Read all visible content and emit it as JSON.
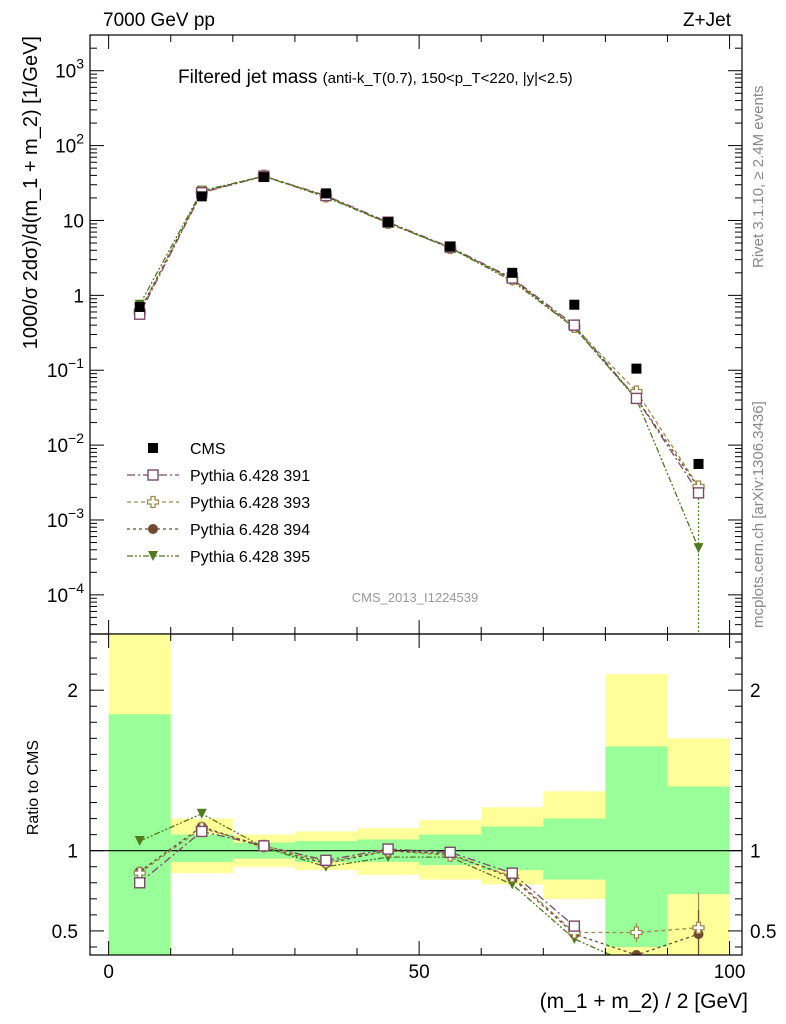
{
  "chart_data": {
    "type": "scatter",
    "header_left": "7000 GeV pp",
    "header_right": "Z+Jet",
    "title": "Filtered jet mass",
    "title_cuts": "(anti-k_T(0.7), 150<p_T<220, |y|<2.5)",
    "analysis_id": "CMS_2013_I1224539",
    "side_label_top": "Rivet 3.1.10, ≥ 2.4M events",
    "side_label_bottom": "mcplots.cern.ch [arXiv:1306.3436]",
    "xlabel": "(m_1 + m_2) / 2 [GeV]",
    "ylabel": "1000/σ 2dσ)/d(m_1 + m_2) [1/GeV]",
    "ratio_ylabel": "Ratio to CMS",
    "xlim": [
      -3,
      102
    ],
    "ylim": [
      3e-05,
      3000
    ],
    "yscale": "log",
    "ratio_ylim": [
      0.35,
      2.35
    ],
    "x_ticks": [
      0,
      50,
      100
    ],
    "x_tick_labels": [
      "0",
      "50",
      "100"
    ],
    "ratio_ticks": [
      0.5,
      1,
      2
    ],
    "ratio_tick_labels": [
      "0.5",
      "1",
      "2"
    ],
    "y_tick_labels": [
      {
        "v": 1000,
        "base": "10",
        "exp": "3"
      },
      {
        "v": 100,
        "base": "10",
        "exp": "2"
      },
      {
        "v": 10,
        "base": "10",
        "exp": ""
      },
      {
        "v": 1,
        "base": "1",
        "exp": ""
      },
      {
        "v": 0.1,
        "base": "10",
        "exp": "−1"
      },
      {
        "v": 0.01,
        "base": "10",
        "exp": "−2"
      },
      {
        "v": 0.001,
        "base": "10",
        "exp": "−3"
      },
      {
        "v": 0.0001,
        "base": "10",
        "exp": "−4"
      }
    ],
    "x_bins": [
      5,
      15,
      25,
      35,
      45,
      55,
      65,
      75,
      85,
      95
    ],
    "bin_edges": [
      0,
      10,
      20,
      30,
      40,
      50,
      60,
      70,
      80,
      90,
      100
    ],
    "band_inner": [
      [
        0.0,
        1.85
      ],
      [
        0.93,
        1.1
      ],
      [
        0.95,
        1.05
      ],
      [
        0.93,
        1.06
      ],
      [
        0.93,
        1.07
      ],
      [
        0.91,
        1.1
      ],
      [
        0.88,
        1.15
      ],
      [
        0.82,
        1.2
      ],
      [
        0.4,
        1.65
      ],
      [
        0.73,
        1.4
      ]
    ],
    "band_outer": [
      [
        0.0,
        2.35
      ],
      [
        0.86,
        1.2
      ],
      [
        0.9,
        1.1
      ],
      [
        0.88,
        1.12
      ],
      [
        0.85,
        1.14
      ],
      [
        0.82,
        1.19
      ],
      [
        0.79,
        1.27
      ],
      [
        0.7,
        1.37
      ],
      [
        0.0,
        2.1
      ],
      [
        0.0,
        1.7
      ]
    ],
    "series": [
      {
        "name": "CMS",
        "color": "#000000",
        "marker": "square-filled",
        "values": [
          0.7,
          21,
          38,
          23,
          9.5,
          4.5,
          2.0,
          0.75,
          0.105,
          0.0056
        ]
      },
      {
        "name": "Pythia 6.428 391",
        "color": "#7b4a6a",
        "marker": "square-open",
        "dash": "8,3,2,3",
        "values": [
          0.56,
          23.5,
          39,
          21.5,
          9.5,
          4.4,
          1.7,
          0.4,
          0.042,
          0.0023
        ],
        "ratio": [
          0.8,
          1.12,
          1.03,
          0.94,
          1.01,
          0.99,
          0.86,
          0.53,
          null,
          null
        ],
        "ratio_err": [
          0.02,
          0.02,
          0,
          0,
          0,
          0,
          0,
          0,
          0,
          0
        ]
      },
      {
        "name": "Pythia 6.428 393",
        "color": "#9c8a50",
        "marker": "cross-open",
        "dash": "4,3",
        "values": [
          0.6,
          24,
          39.5,
          21,
          9.3,
          4.3,
          1.65,
          0.38,
          0.052,
          0.0028
        ],
        "ratio": [
          0.86,
          1.14,
          1.03,
          0.93,
          1.0,
          0.97,
          0.84,
          0.49,
          0.49,
          0.52
        ],
        "ratio_err": [
          0.02,
          0.02,
          0,
          0,
          0,
          0,
          0,
          0.03,
          0.06,
          0.22
        ]
      },
      {
        "name": "Pythia 6.428 394",
        "color": "#6e4a2e",
        "marker": "circle-filled",
        "dash": "3,3",
        "values": [
          0.62,
          24,
          39,
          21,
          9.3,
          4.3,
          1.65,
          0.37,
          0.042,
          0.0027
        ],
        "ratio": [
          0.87,
          1.15,
          1.02,
          0.92,
          1.0,
          0.98,
          0.83,
          0.48,
          0.35,
          0.48
        ],
        "ratio_err": [
          0.02,
          0.02,
          0,
          0,
          0,
          0,
          0,
          0,
          0,
          0.15
        ]
      },
      {
        "name": "Pythia 6.428 395",
        "color": "#4f7a1e",
        "marker": "triangle-down-filled",
        "dash": "6,2,2,2,2,2",
        "values": [
          0.75,
          25,
          39,
          20.5,
          9.2,
          4.3,
          1.55,
          0.37,
          0.041,
          0.00042
        ],
        "ratio": [
          1.06,
          1.23,
          1.02,
          0.9,
          0.96,
          0.96,
          0.79,
          0.45,
          0.28,
          null
        ],
        "ratio_err": [
          0.02,
          0.02,
          0,
          0,
          0,
          0,
          0,
          0,
          0,
          0
        ]
      }
    ]
  }
}
